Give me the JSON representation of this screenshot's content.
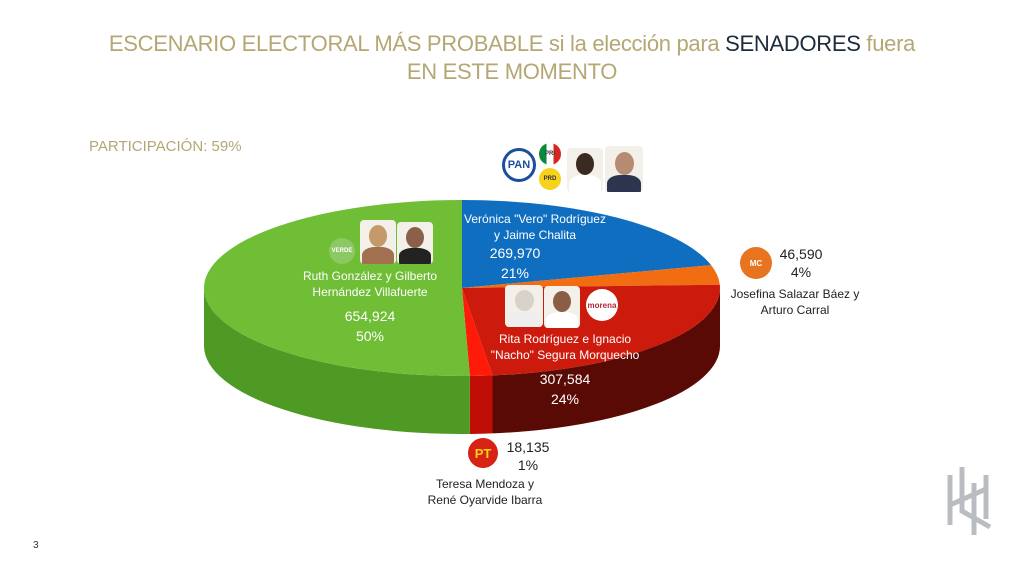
{
  "title": {
    "part1": "ESCENARIO ELECTORAL MÁS PROBABLE si la elección para ",
    "highlight": "SENADORES",
    "part2": " fuera",
    "line2": "EN ESTE MOMENTO"
  },
  "participation": "PARTICIPACIÓN: 59%",
  "logos": {
    "pan": "PAN",
    "pri": "PRI",
    "prd": "PRD",
    "verde": "VERDE",
    "morena": "morena",
    "mc": "MC",
    "pt": "PT"
  },
  "page_number": "3",
  "colors": {
    "green": "#6fbe35",
    "blue": "#0f6ebf",
    "orange": "#f26c12",
    "red": "#cc1a0c",
    "pt_red": "#ff1a0a",
    "title": "#b5a774"
  },
  "chart_data": {
    "type": "pie",
    "title": "ESCENARIO ELECTORAL MÁS PROBABLE si la elección para SENADORES fuera EN ESTE MOMENTO",
    "slices": [
      {
        "key": "blue",
        "name": "Verónica \"Vero\" Rodríguez y Jaime Chalita",
        "line1": "Verónica \"Vero\" Rodríguez",
        "line2": "y Jaime Chalita",
        "votes": "269,970",
        "value": 269970,
        "pct": "21%",
        "party": "PAN-PRI-PRD"
      },
      {
        "key": "orange",
        "name": "Josefina Salazar Báez y Arturo Carral",
        "line1": "Josefina Salazar Báez y",
        "line2": "Arturo Carral",
        "votes": "46,590",
        "value": 46590,
        "pct": "4%",
        "party": "MC"
      },
      {
        "key": "red",
        "name": "Rita Rodríguez e Ignacio \"Nacho\" Segura Morquecho",
        "line1": "Rita Rodríguez e Ignacio",
        "line2": "\"Nacho\" Segura Morquecho",
        "votes": "307,584",
        "value": 307584,
        "pct": "24%",
        "party": "morena"
      },
      {
        "key": "pt_red",
        "name": "Teresa Mendoza y René Oyarvide Ibarra",
        "line1": "Teresa Mendoza y",
        "line2": "René Oyarvide Ibarra",
        "votes": "18,135",
        "value": 18135,
        "pct": "1%",
        "party": "PT"
      },
      {
        "key": "green",
        "name": "Ruth González y Gilberto Hernández Villafuerte",
        "line1": "Ruth González y Gilberto",
        "line2": "Hernández Villafuerte",
        "votes": "654,924",
        "value": 654924,
        "pct": "50%",
        "party": "VERDE"
      }
    ]
  }
}
